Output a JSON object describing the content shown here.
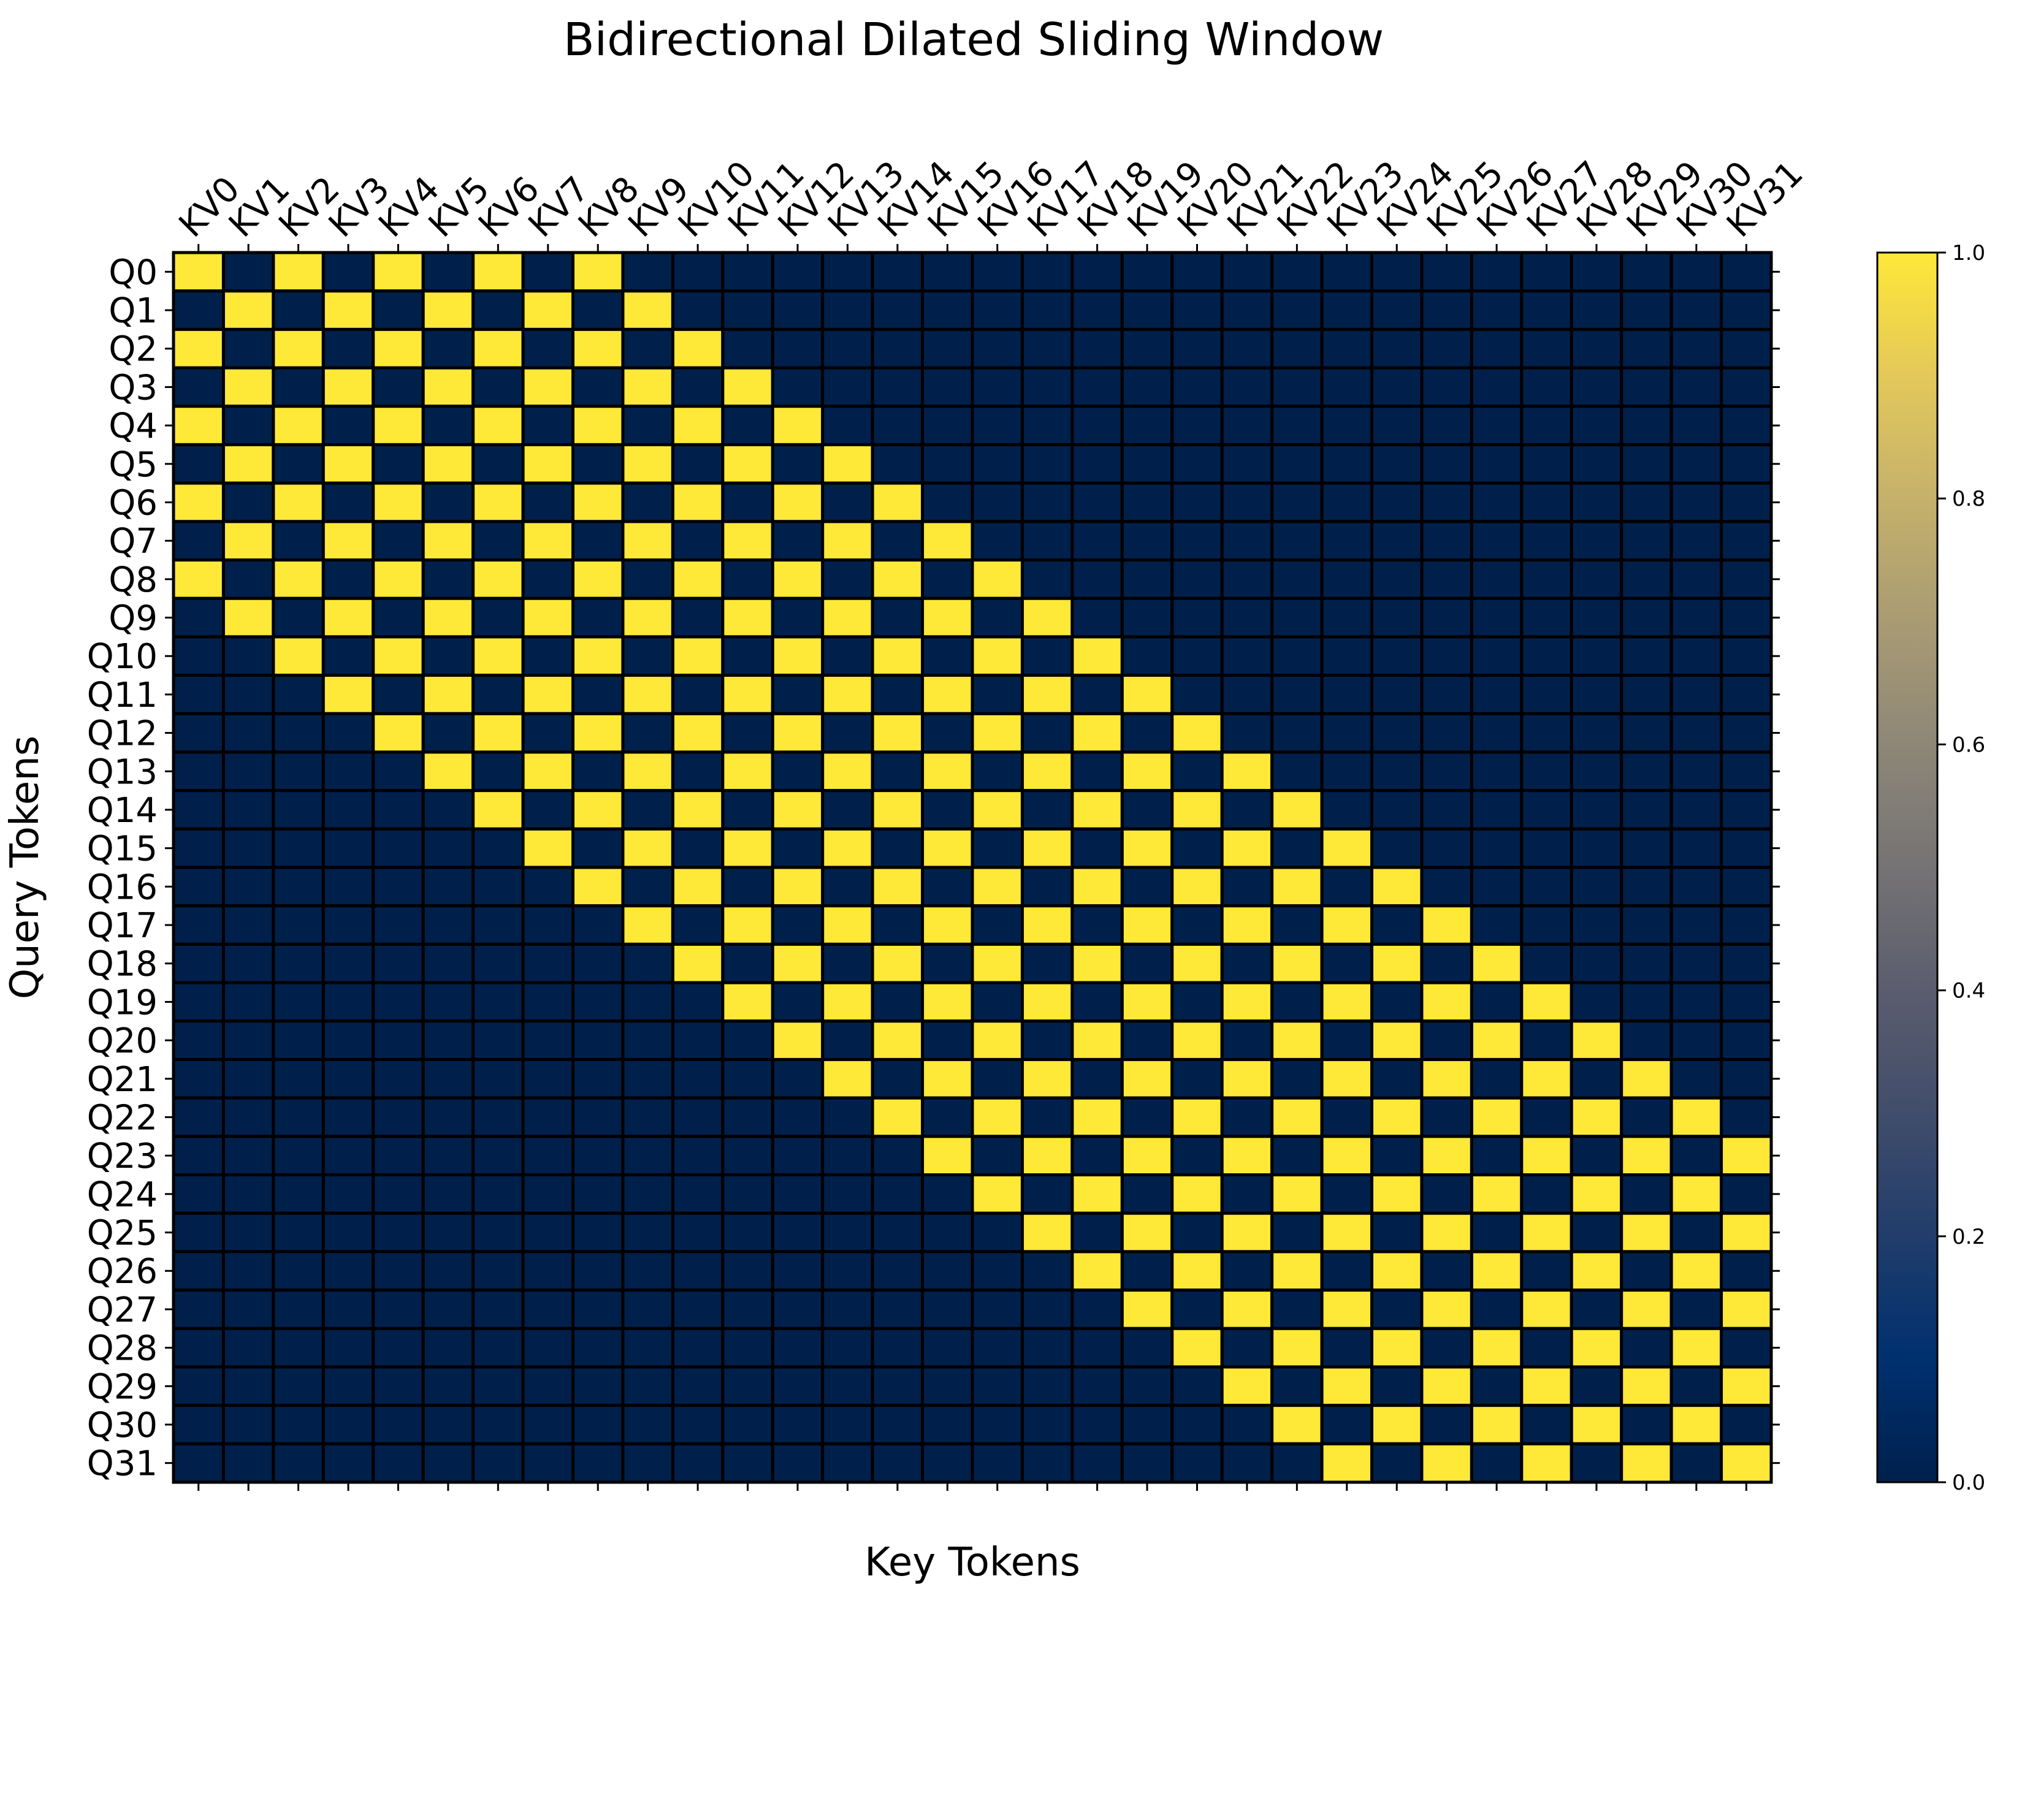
{
  "chart_data": {
    "type": "heatmap",
    "title": "Bidirectional Dilated Sliding Window",
    "xlabel": "Key Tokens",
    "ylabel": "Query Tokens",
    "x_tick_labels": [
      "KV0",
      "KV1",
      "KV2",
      "KV3",
      "KV4",
      "KV5",
      "KV6",
      "KV7",
      "KV8",
      "KV9",
      "KV10",
      "KV11",
      "KV12",
      "KV13",
      "KV14",
      "KV15",
      "KV16",
      "KV17",
      "KV18",
      "KV19",
      "KV20",
      "KV21",
      "KV22",
      "KV23",
      "KV24",
      "KV25",
      "KV26",
      "KV27",
      "KV28",
      "KV29",
      "KV30",
      "KV31"
    ],
    "y_tick_labels": [
      "Q0",
      "Q1",
      "Q2",
      "Q3",
      "Q4",
      "Q5",
      "Q6",
      "Q7",
      "Q8",
      "Q9",
      "Q10",
      "Q11",
      "Q12",
      "Q13",
      "Q14",
      "Q15",
      "Q16",
      "Q17",
      "Q18",
      "Q19",
      "Q20",
      "Q21",
      "Q22",
      "Q23",
      "Q24",
      "Q25",
      "Q26",
      "Q27",
      "Q28",
      "Q29",
      "Q30",
      "Q31"
    ],
    "colormap": "cividis",
    "colors": {
      "low": "#00204c",
      "high": "#fee838",
      "cell_border": "#000000"
    },
    "colorbar": {
      "range": [
        0.0,
        1.0
      ],
      "tick_labels": [
        "0.0",
        "0.2",
        "0.4",
        "0.6",
        "0.8",
        "1.0"
      ]
    },
    "x_axis_position": "top",
    "matrix": [
      [
        1,
        0,
        1,
        0,
        1,
        0,
        1,
        0,
        1,
        0,
        0,
        0,
        0,
        0,
        0,
        0,
        0,
        0,
        0,
        0,
        0,
        0,
        0,
        0,
        0,
        0,
        0,
        0,
        0,
        0,
        0,
        0
      ],
      [
        0,
        1,
        0,
        1,
        0,
        1,
        0,
        1,
        0,
        1,
        0,
        0,
        0,
        0,
        0,
        0,
        0,
        0,
        0,
        0,
        0,
        0,
        0,
        0,
        0,
        0,
        0,
        0,
        0,
        0,
        0,
        0
      ],
      [
        1,
        0,
        1,
        0,
        1,
        0,
        1,
        0,
        1,
        0,
        1,
        0,
        0,
        0,
        0,
        0,
        0,
        0,
        0,
        0,
        0,
        0,
        0,
        0,
        0,
        0,
        0,
        0,
        0,
        0,
        0,
        0
      ],
      [
        0,
        1,
        0,
        1,
        0,
        1,
        0,
        1,
        0,
        1,
        0,
        1,
        0,
        0,
        0,
        0,
        0,
        0,
        0,
        0,
        0,
        0,
        0,
        0,
        0,
        0,
        0,
        0,
        0,
        0,
        0,
        0
      ],
      [
        1,
        0,
        1,
        0,
        1,
        0,
        1,
        0,
        1,
        0,
        1,
        0,
        1,
        0,
        0,
        0,
        0,
        0,
        0,
        0,
        0,
        0,
        0,
        0,
        0,
        0,
        0,
        0,
        0,
        0,
        0,
        0
      ],
      [
        0,
        1,
        0,
        1,
        0,
        1,
        0,
        1,
        0,
        1,
        0,
        1,
        0,
        1,
        0,
        0,
        0,
        0,
        0,
        0,
        0,
        0,
        0,
        0,
        0,
        0,
        0,
        0,
        0,
        0,
        0,
        0
      ],
      [
        1,
        0,
        1,
        0,
        1,
        0,
        1,
        0,
        1,
        0,
        1,
        0,
        1,
        0,
        1,
        0,
        0,
        0,
        0,
        0,
        0,
        0,
        0,
        0,
        0,
        0,
        0,
        0,
        0,
        0,
        0,
        0
      ],
      [
        0,
        1,
        0,
        1,
        0,
        1,
        0,
        1,
        0,
        1,
        0,
        1,
        0,
        1,
        0,
        1,
        0,
        0,
        0,
        0,
        0,
        0,
        0,
        0,
        0,
        0,
        0,
        0,
        0,
        0,
        0,
        0
      ],
      [
        1,
        0,
        1,
        0,
        1,
        0,
        1,
        0,
        1,
        0,
        1,
        0,
        1,
        0,
        1,
        0,
        1,
        0,
        0,
        0,
        0,
        0,
        0,
        0,
        0,
        0,
        0,
        0,
        0,
        0,
        0,
        0
      ],
      [
        0,
        1,
        0,
        1,
        0,
        1,
        0,
        1,
        0,
        1,
        0,
        1,
        0,
        1,
        0,
        1,
        0,
        1,
        0,
        0,
        0,
        0,
        0,
        0,
        0,
        0,
        0,
        0,
        0,
        0,
        0,
        0
      ],
      [
        0,
        0,
        1,
        0,
        1,
        0,
        1,
        0,
        1,
        0,
        1,
        0,
        1,
        0,
        1,
        0,
        1,
        0,
        1,
        0,
        0,
        0,
        0,
        0,
        0,
        0,
        0,
        0,
        0,
        0,
        0,
        0
      ],
      [
        0,
        0,
        0,
        1,
        0,
        1,
        0,
        1,
        0,
        1,
        0,
        1,
        0,
        1,
        0,
        1,
        0,
        1,
        0,
        1,
        0,
        0,
        0,
        0,
        0,
        0,
        0,
        0,
        0,
        0,
        0,
        0
      ],
      [
        0,
        0,
        0,
        0,
        1,
        0,
        1,
        0,
        1,
        0,
        1,
        0,
        1,
        0,
        1,
        0,
        1,
        0,
        1,
        0,
        1,
        0,
        0,
        0,
        0,
        0,
        0,
        0,
        0,
        0,
        0,
        0
      ],
      [
        0,
        0,
        0,
        0,
        0,
        1,
        0,
        1,
        0,
        1,
        0,
        1,
        0,
        1,
        0,
        1,
        0,
        1,
        0,
        1,
        0,
        1,
        0,
        0,
        0,
        0,
        0,
        0,
        0,
        0,
        0,
        0
      ],
      [
        0,
        0,
        0,
        0,
        0,
        0,
        1,
        0,
        1,
        0,
        1,
        0,
        1,
        0,
        1,
        0,
        1,
        0,
        1,
        0,
        1,
        0,
        1,
        0,
        0,
        0,
        0,
        0,
        0,
        0,
        0,
        0
      ],
      [
        0,
        0,
        0,
        0,
        0,
        0,
        0,
        1,
        0,
        1,
        0,
        1,
        0,
        1,
        0,
        1,
        0,
        1,
        0,
        1,
        0,
        1,
        0,
        1,
        0,
        0,
        0,
        0,
        0,
        0,
        0,
        0
      ],
      [
        0,
        0,
        0,
        0,
        0,
        0,
        0,
        0,
        1,
        0,
        1,
        0,
        1,
        0,
        1,
        0,
        1,
        0,
        1,
        0,
        1,
        0,
        1,
        0,
        1,
        0,
        0,
        0,
        0,
        0,
        0,
        0
      ],
      [
        0,
        0,
        0,
        0,
        0,
        0,
        0,
        0,
        0,
        1,
        0,
        1,
        0,
        1,
        0,
        1,
        0,
        1,
        0,
        1,
        0,
        1,
        0,
        1,
        0,
        1,
        0,
        0,
        0,
        0,
        0,
        0
      ],
      [
        0,
        0,
        0,
        0,
        0,
        0,
        0,
        0,
        0,
        0,
        1,
        0,
        1,
        0,
        1,
        0,
        1,
        0,
        1,
        0,
        1,
        0,
        1,
        0,
        1,
        0,
        1,
        0,
        0,
        0,
        0,
        0
      ],
      [
        0,
        0,
        0,
        0,
        0,
        0,
        0,
        0,
        0,
        0,
        0,
        1,
        0,
        1,
        0,
        1,
        0,
        1,
        0,
        1,
        0,
        1,
        0,
        1,
        0,
        1,
        0,
        1,
        0,
        0,
        0,
        0
      ],
      [
        0,
        0,
        0,
        0,
        0,
        0,
        0,
        0,
        0,
        0,
        0,
        0,
        1,
        0,
        1,
        0,
        1,
        0,
        1,
        0,
        1,
        0,
        1,
        0,
        1,
        0,
        1,
        0,
        1,
        0,
        0,
        0
      ],
      [
        0,
        0,
        0,
        0,
        0,
        0,
        0,
        0,
        0,
        0,
        0,
        0,
        0,
        1,
        0,
        1,
        0,
        1,
        0,
        1,
        0,
        1,
        0,
        1,
        0,
        1,
        0,
        1,
        0,
        1,
        0,
        0
      ],
      [
        0,
        0,
        0,
        0,
        0,
        0,
        0,
        0,
        0,
        0,
        0,
        0,
        0,
        0,
        1,
        0,
        1,
        0,
        1,
        0,
        1,
        0,
        1,
        0,
        1,
        0,
        1,
        0,
        1,
        0,
        1,
        0
      ],
      [
        0,
        0,
        0,
        0,
        0,
        0,
        0,
        0,
        0,
        0,
        0,
        0,
        0,
        0,
        0,
        1,
        0,
        1,
        0,
        1,
        0,
        1,
        0,
        1,
        0,
        1,
        0,
        1,
        0,
        1,
        0,
        1
      ],
      [
        0,
        0,
        0,
        0,
        0,
        0,
        0,
        0,
        0,
        0,
        0,
        0,
        0,
        0,
        0,
        0,
        1,
        0,
        1,
        0,
        1,
        0,
        1,
        0,
        1,
        0,
        1,
        0,
        1,
        0,
        1,
        0
      ],
      [
        0,
        0,
        0,
        0,
        0,
        0,
        0,
        0,
        0,
        0,
        0,
        0,
        0,
        0,
        0,
        0,
        0,
        1,
        0,
        1,
        0,
        1,
        0,
        1,
        0,
        1,
        0,
        1,
        0,
        1,
        0,
        1
      ],
      [
        0,
        0,
        0,
        0,
        0,
        0,
        0,
        0,
        0,
        0,
        0,
        0,
        0,
        0,
        0,
        0,
        0,
        0,
        1,
        0,
        1,
        0,
        1,
        0,
        1,
        0,
        1,
        0,
        1,
        0,
        1,
        0
      ],
      [
        0,
        0,
        0,
        0,
        0,
        0,
        0,
        0,
        0,
        0,
        0,
        0,
        0,
        0,
        0,
        0,
        0,
        0,
        0,
        1,
        0,
        1,
        0,
        1,
        0,
        1,
        0,
        1,
        0,
        1,
        0,
        1
      ],
      [
        0,
        0,
        0,
        0,
        0,
        0,
        0,
        0,
        0,
        0,
        0,
        0,
        0,
        0,
        0,
        0,
        0,
        0,
        0,
        0,
        1,
        0,
        1,
        0,
        1,
        0,
        1,
        0,
        1,
        0,
        1,
        0
      ],
      [
        0,
        0,
        0,
        0,
        0,
        0,
        0,
        0,
        0,
        0,
        0,
        0,
        0,
        0,
        0,
        0,
        0,
        0,
        0,
        0,
        0,
        1,
        0,
        1,
        0,
        1,
        0,
        1,
        0,
        1,
        0,
        1
      ],
      [
        0,
        0,
        0,
        0,
        0,
        0,
        0,
        0,
        0,
        0,
        0,
        0,
        0,
        0,
        0,
        0,
        0,
        0,
        0,
        0,
        0,
        0,
        1,
        0,
        1,
        0,
        1,
        0,
        1,
        0,
        1,
        0
      ],
      [
        0,
        0,
        0,
        0,
        0,
        0,
        0,
        0,
        0,
        0,
        0,
        0,
        0,
        0,
        0,
        0,
        0,
        0,
        0,
        0,
        0,
        0,
        0,
        1,
        0,
        1,
        0,
        1,
        0,
        1,
        0,
        1
      ]
    ]
  }
}
